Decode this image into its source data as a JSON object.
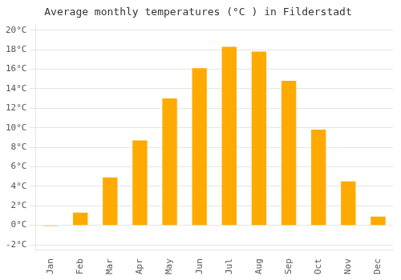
{
  "chart_data": {
    "type": "bar",
    "title": "Average monthly temperatures (°C ) in Filderstadt",
    "categories": [
      "Jan",
      "Feb",
      "Mar",
      "Apr",
      "May",
      "Jun",
      "Jul",
      "Aug",
      "Sep",
      "Oct",
      "Nov",
      "Dec"
    ],
    "values": [
      -0.1,
      1.3,
      4.9,
      8.7,
      13.0,
      16.1,
      18.3,
      17.8,
      14.8,
      9.8,
      4.5,
      0.9
    ],
    "color": "#FFAA00",
    "ylim": [
      -2.5,
      20.5
    ],
    "yticks": [
      {
        "value": -2,
        "label": "-2°C"
      },
      {
        "value": 0,
        "label": "0°C"
      },
      {
        "value": 2,
        "label": "2°C"
      },
      {
        "value": 4,
        "label": "4°C"
      },
      {
        "value": 6,
        "label": "6°C"
      },
      {
        "value": 8,
        "label": "8°C"
      },
      {
        "value": 10,
        "label": "10°C"
      },
      {
        "value": 12,
        "label": "12°C"
      },
      {
        "value": 14,
        "label": "14°C"
      },
      {
        "value": 16,
        "label": "16°C"
      },
      {
        "value": 18,
        "label": "18°C"
      },
      {
        "value": 20,
        "label": "20°C"
      }
    ],
    "grid": true
  }
}
